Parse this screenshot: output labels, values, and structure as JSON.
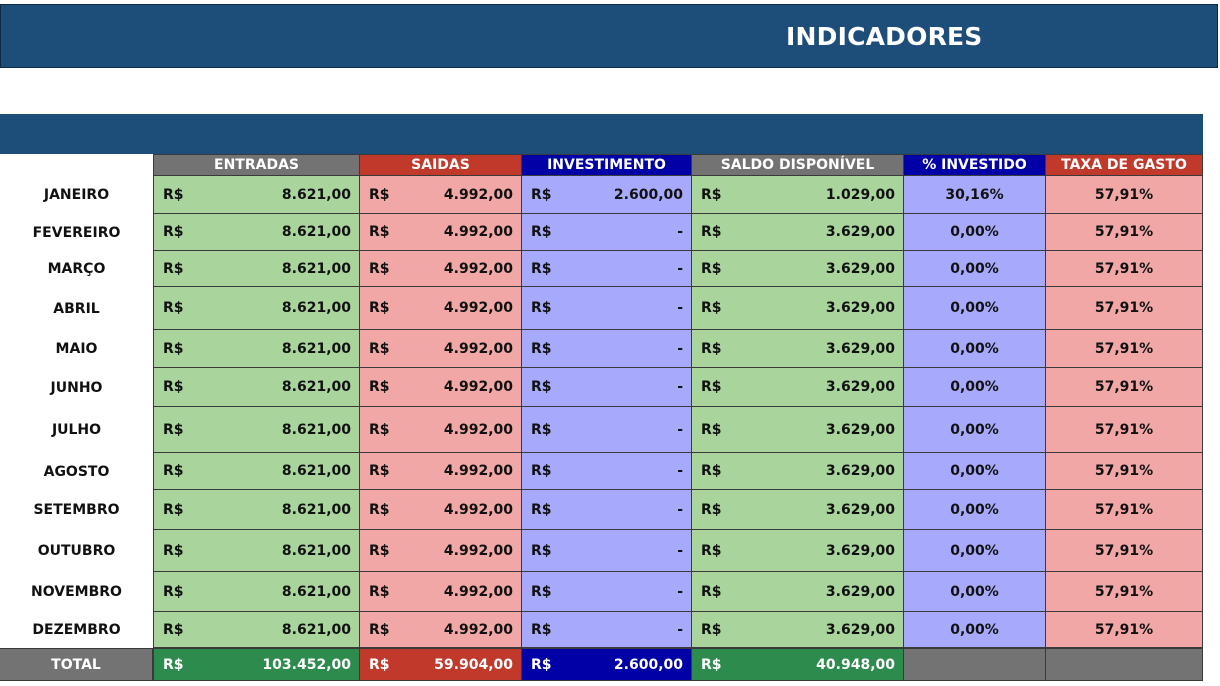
{
  "title": "INDICADORES",
  "colors": {
    "title_bg": "#1d4e79",
    "entradas_header": "#737373",
    "saidas_header": "#c0392b",
    "investimento_header": "#0000a6",
    "saldo_header": "#737373",
    "investido_header": "#0000a6",
    "taxa_header": "#c0392b",
    "green_cell": "#a9d59d",
    "red_cell": "#f0a7a6",
    "blue_cell": "#a7a9fc",
    "total_green": "#2e8b4e",
    "total_red": "#c0392b",
    "total_blue": "#0000a6",
    "total_gray": "#737373"
  },
  "columns": [
    "ENTRADAS",
    "SAIDAS",
    "INVESTIMENTO",
    "SALDO DISPONÍVEL",
    "% INVESTIDO",
    "TAXA DE GASTO"
  ],
  "currency": "R$",
  "rows": [
    {
      "month": "JANEIRO",
      "entradas": "8.621,00",
      "saidas": "4.992,00",
      "investimento": "2.600,00",
      "saldo": "1.029,00",
      "investido": "30,16%",
      "taxa": "57,91%"
    },
    {
      "month": "FEVEREIRO",
      "entradas": "8.621,00",
      "saidas": "4.992,00",
      "investimento": "-",
      "saldo": "3.629,00",
      "investido": "0,00%",
      "taxa": "57,91%"
    },
    {
      "month": "MARÇO",
      "entradas": "8.621,00",
      "saidas": "4.992,00",
      "investimento": "-",
      "saldo": "3.629,00",
      "investido": "0,00%",
      "taxa": "57,91%"
    },
    {
      "month": "ABRIL",
      "entradas": "8.621,00",
      "saidas": "4.992,00",
      "investimento": "-",
      "saldo": "3.629,00",
      "investido": "0,00%",
      "taxa": "57,91%"
    },
    {
      "month": "MAIO",
      "entradas": "8.621,00",
      "saidas": "4.992,00",
      "investimento": "-",
      "saldo": "3.629,00",
      "investido": "0,00%",
      "taxa": "57,91%"
    },
    {
      "month": "JUNHO",
      "entradas": "8.621,00",
      "saidas": "4.992,00",
      "investimento": "-",
      "saldo": "3.629,00",
      "investido": "0,00%",
      "taxa": "57,91%"
    },
    {
      "month": "JULHO",
      "entradas": "8.621,00",
      "saidas": "4.992,00",
      "investimento": "-",
      "saldo": "3.629,00",
      "investido": "0,00%",
      "taxa": "57,91%"
    },
    {
      "month": "AGOSTO",
      "entradas": "8.621,00",
      "saidas": "4.992,00",
      "investimento": "-",
      "saldo": "3.629,00",
      "investido": "0,00%",
      "taxa": "57,91%"
    },
    {
      "month": "SETEMBRO",
      "entradas": "8.621,00",
      "saidas": "4.992,00",
      "investimento": "-",
      "saldo": "3.629,00",
      "investido": "0,00%",
      "taxa": "57,91%"
    },
    {
      "month": "OUTUBRO",
      "entradas": "8.621,00",
      "saidas": "4.992,00",
      "investimento": "-",
      "saldo": "3.629,00",
      "investido": "0,00%",
      "taxa": "57,91%"
    },
    {
      "month": "NOVEMBRO",
      "entradas": "8.621,00",
      "saidas": "4.992,00",
      "investimento": "-",
      "saldo": "3.629,00",
      "investido": "0,00%",
      "taxa": "57,91%"
    },
    {
      "month": "DEZEMBRO",
      "entradas": "8.621,00",
      "saidas": "4.992,00",
      "investimento": "-",
      "saldo": "3.629,00",
      "investido": "0,00%",
      "taxa": "57,91%"
    }
  ],
  "total": {
    "label": "TOTAL",
    "entradas": "103.452,00",
    "saidas": "59.904,00",
    "investimento": "2.600,00",
    "saldo": "40.948,00"
  }
}
